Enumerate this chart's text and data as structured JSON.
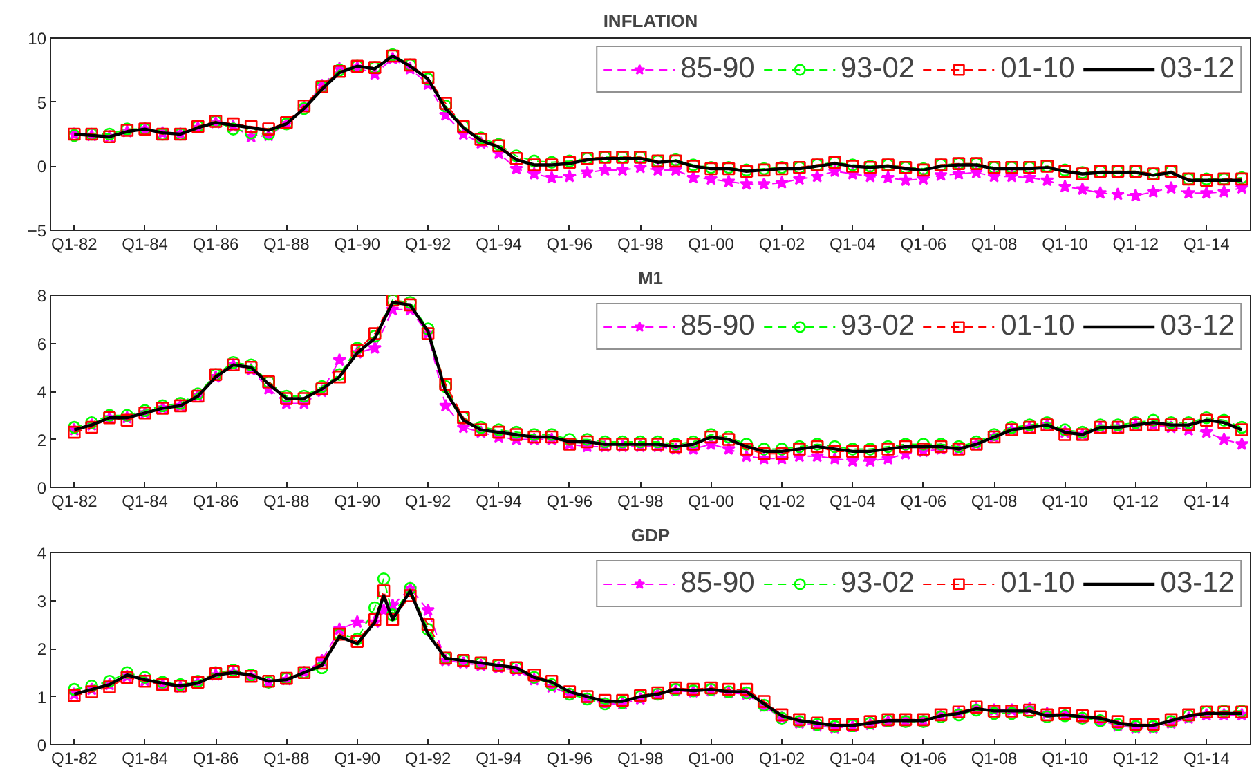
{
  "chart_data": [
    {
      "type": "line",
      "title": "INFLATION",
      "legend": "top right",
      "grid": false,
      "xlim": [
        "1981-05",
        "2015-04"
      ],
      "ylim": [
        -5,
        10
      ],
      "yticks": [
        -5,
        0,
        5,
        10
      ],
      "xticks": [
        {
          "value": "1982-01",
          "label": "Q1-82"
        },
        {
          "value": "1984-01",
          "label": "Q1-84"
        },
        {
          "value": "1986-01",
          "label": "Q1-86"
        },
        {
          "value": "1988-01",
          "label": "Q1-88"
        },
        {
          "value": "1990-01",
          "label": "Q1-90"
        },
        {
          "value": "1992-01",
          "label": "Q1-92"
        },
        {
          "value": "1994-01",
          "label": "Q1-94"
        },
        {
          "value": "1996-01",
          "label": "Q1-96"
        },
        {
          "value": "1998-01",
          "label": "Q1-98"
        },
        {
          "value": "2000-01",
          "label": "Q1-00"
        },
        {
          "value": "2002-01",
          "label": "Q1-02"
        },
        {
          "value": "2004-01",
          "label": "Q1-04"
        },
        {
          "value": "2006-01",
          "label": "Q1-06"
        },
        {
          "value": "2008-01",
          "label": "Q1-08"
        },
        {
          "value": "2010-01",
          "label": "Q1-10"
        },
        {
          "value": "2012-01",
          "label": "Q1-12"
        },
        {
          "value": "2014-01",
          "label": "Q1-14"
        }
      ],
      "x": [
        "1982-01",
        "1982-07",
        "1983-01",
        "1983-07",
        "1984-01",
        "1984-07",
        "1985-01",
        "1985-07",
        "1986-01",
        "1986-07",
        "1987-01",
        "1987-07",
        "1988-01",
        "1988-07",
        "1989-01",
        "1989-07",
        "1990-01",
        "1990-07",
        "1991-01",
        "1991-07",
        "1992-01",
        "1992-07",
        "1993-01",
        "1993-07",
        "1994-01",
        "1994-07",
        "1995-01",
        "1995-07",
        "1996-01",
        "1996-07",
        "1997-01",
        "1997-07",
        "1998-01",
        "1998-07",
        "1999-01",
        "1999-07",
        "2000-01",
        "2000-07",
        "2001-01",
        "2001-07",
        "2002-01",
        "2002-07",
        "2003-01",
        "2003-07",
        "2004-01",
        "2004-07",
        "2005-01",
        "2005-07",
        "2006-01",
        "2006-07",
        "2007-01",
        "2007-07",
        "2008-01",
        "2008-07",
        "2009-01",
        "2009-07",
        "2010-01",
        "2010-07",
        "2011-01",
        "2011-07",
        "2012-01",
        "2012-07",
        "2013-01",
        "2013-07",
        "2014-01",
        "2014-07",
        "2015-01"
      ],
      "series": [
        {
          "name": "85-90",
          "color": "#ff00ff",
          "marker": "star",
          "line_style": "dashed",
          "values": [
            2.5,
            2.4,
            2.3,
            2.7,
            2.9,
            2.6,
            2.5,
            3.0,
            3.4,
            3.1,
            2.3,
            2.4,
            3.3,
            4.6,
            6.3,
            7.6,
            7.7,
            7.2,
            8.4,
            7.6,
            6.4,
            4.0,
            2.5,
            1.8,
            1.0,
            -0.2,
            -0.6,
            -0.9,
            -0.8,
            -0.5,
            -0.3,
            -0.3,
            -0.1,
            -0.3,
            -0.3,
            -0.9,
            -1.0,
            -1.2,
            -1.4,
            -1.4,
            -1.3,
            -1.0,
            -0.8,
            -0.4,
            -0.6,
            -0.8,
            -0.9,
            -1.1,
            -1.0,
            -0.7,
            -0.6,
            -0.5,
            -0.8,
            -0.8,
            -0.9,
            -1.1,
            -1.6,
            -1.8,
            -2.1,
            -2.2,
            -2.3,
            -2.0,
            -1.7,
            -2.1,
            -2.1,
            -2.0,
            -1.7
          ]
        },
        {
          "name": "93-02",
          "color": "#00ff00",
          "marker": "circle",
          "line_style": "dashed",
          "values": [
            2.4,
            2.5,
            2.5,
            2.9,
            2.9,
            2.5,
            2.5,
            3.1,
            3.5,
            2.9,
            2.6,
            2.5,
            3.3,
            4.5,
            6.2,
            7.5,
            7.8,
            7.7,
            8.7,
            7.9,
            6.8,
            4.7,
            3.1,
            2.2,
            1.7,
            0.8,
            0.4,
            0.3,
            0.4,
            0.6,
            0.7,
            0.7,
            0.7,
            0.4,
            0.5,
            0.1,
            -0.1,
            -0.1,
            -0.3,
            -0.2,
            -0.1,
            -0.1,
            0.1,
            0.3,
            0.1,
            0.0,
            0.1,
            -0.1,
            -0.2,
            0.1,
            0.2,
            0.2,
            -0.1,
            -0.1,
            -0.1,
            0.0,
            -0.3,
            -0.5,
            -0.4,
            -0.4,
            -0.4,
            -0.6,
            -0.4,
            -1.0,
            -1.0,
            -1.0,
            -0.9
          ]
        },
        {
          "name": "01-10",
          "color": "#ff0000",
          "marker": "square",
          "line_style": "dashed",
          "values": [
            2.5,
            2.5,
            2.3,
            2.8,
            2.9,
            2.5,
            2.5,
            3.1,
            3.5,
            3.3,
            3.1,
            2.9,
            3.4,
            4.7,
            6.2,
            7.4,
            7.8,
            7.7,
            8.6,
            7.9,
            6.9,
            4.9,
            3.1,
            2.1,
            1.6,
            0.6,
            0.1,
            0.1,
            0.3,
            0.6,
            0.7,
            0.7,
            0.7,
            0.4,
            0.4,
            0.0,
            -0.2,
            -0.2,
            -0.4,
            -0.3,
            -0.2,
            -0.1,
            0.1,
            0.3,
            0.0,
            -0.1,
            0.1,
            -0.1,
            -0.3,
            0.1,
            0.2,
            0.2,
            -0.1,
            -0.1,
            -0.1,
            0.0,
            -0.4,
            -0.6,
            -0.4,
            -0.4,
            -0.4,
            -0.6,
            -0.4,
            -1.0,
            -1.1,
            -1.0,
            -1.0
          ]
        },
        {
          "name": "03-12",
          "color": "#000000",
          "marker": "none",
          "line_style": "solid",
          "values": [
            2.5,
            2.4,
            2.3,
            2.7,
            2.9,
            2.6,
            2.5,
            3.0,
            3.4,
            3.2,
            3.0,
            2.8,
            3.3,
            4.5,
            6.0,
            7.3,
            7.8,
            7.6,
            8.6,
            7.8,
            6.8,
            4.5,
            3.0,
            2.0,
            1.5,
            0.5,
            0.1,
            0.1,
            0.2,
            0.5,
            0.6,
            0.6,
            0.6,
            0.3,
            0.4,
            0.0,
            -0.2,
            -0.2,
            -0.4,
            -0.3,
            -0.2,
            -0.2,
            0.0,
            0.2,
            0.0,
            -0.1,
            0.0,
            -0.2,
            -0.3,
            0.0,
            0.1,
            0.1,
            -0.2,
            -0.2,
            -0.2,
            -0.1,
            -0.4,
            -0.6,
            -0.5,
            -0.5,
            -0.5,
            -0.7,
            -0.5,
            -1.1,
            -1.1,
            -1.1,
            -1.1
          ]
        }
      ]
    },
    {
      "type": "line",
      "title": "M1",
      "legend": "top right",
      "grid": false,
      "xlim": [
        "1981-05",
        "2015-04"
      ],
      "ylim": [
        0,
        8
      ],
      "yticks": [
        0,
        2,
        4,
        6,
        8
      ],
      "xticks": [
        {
          "value": "1982-01",
          "label": "Q1-82"
        },
        {
          "value": "1984-01",
          "label": "Q1-84"
        },
        {
          "value": "1986-01",
          "label": "Q1-86"
        },
        {
          "value": "1988-01",
          "label": "Q1-88"
        },
        {
          "value": "1990-01",
          "label": "Q1-90"
        },
        {
          "value": "1992-01",
          "label": "Q1-92"
        },
        {
          "value": "1994-01",
          "label": "Q1-94"
        },
        {
          "value": "1996-01",
          "label": "Q1-96"
        },
        {
          "value": "1998-01",
          "label": "Q1-98"
        },
        {
          "value": "2000-01",
          "label": "Q1-00"
        },
        {
          "value": "2002-01",
          "label": "Q1-02"
        },
        {
          "value": "2004-01",
          "label": "Q1-04"
        },
        {
          "value": "2006-01",
          "label": "Q1-06"
        },
        {
          "value": "2008-01",
          "label": "Q1-08"
        },
        {
          "value": "2010-01",
          "label": "Q1-10"
        },
        {
          "value": "2012-01",
          "label": "Q1-12"
        },
        {
          "value": "2014-01",
          "label": "Q1-14"
        }
      ],
      "x": [
        "1982-01",
        "1982-07",
        "1983-01",
        "1983-07",
        "1984-01",
        "1984-07",
        "1985-01",
        "1985-07",
        "1986-01",
        "1986-07",
        "1987-01",
        "1987-07",
        "1988-01",
        "1988-07",
        "1989-01",
        "1989-07",
        "1990-01",
        "1990-07",
        "1991-01",
        "1991-07",
        "1992-01",
        "1992-07",
        "1993-01",
        "1993-07",
        "1994-01",
        "1994-07",
        "1995-01",
        "1995-07",
        "1996-01",
        "1996-07",
        "1997-01",
        "1997-07",
        "1998-01",
        "1998-07",
        "1999-01",
        "1999-07",
        "2000-01",
        "2000-07",
        "2001-01",
        "2001-07",
        "2002-01",
        "2002-07",
        "2003-01",
        "2003-07",
        "2004-01",
        "2004-07",
        "2005-01",
        "2005-07",
        "2006-01",
        "2006-07",
        "2007-01",
        "2007-07",
        "2008-01",
        "2008-07",
        "2009-01",
        "2009-07",
        "2010-01",
        "2010-07",
        "2011-01",
        "2011-07",
        "2012-01",
        "2012-07",
        "2013-01",
        "2013-07",
        "2014-01",
        "2014-07",
        "2015-01"
      ],
      "series": [
        {
          "name": "85-90",
          "color": "#ff00ff",
          "marker": "star",
          "line_style": "dashed",
          "values": [
            2.4,
            2.6,
            2.9,
            2.9,
            3.1,
            3.3,
            3.4,
            3.8,
            4.6,
            5.1,
            4.9,
            4.1,
            3.5,
            3.5,
            4.0,
            5.3,
            5.6,
            5.8,
            7.4,
            7.4,
            6.4,
            3.4,
            2.5,
            2.3,
            2.1,
            2.0,
            2.0,
            2.0,
            1.8,
            1.7,
            1.7,
            1.7,
            1.7,
            1.7,
            1.6,
            1.6,
            1.8,
            1.6,
            1.3,
            1.2,
            1.2,
            1.3,
            1.3,
            1.2,
            1.1,
            1.1,
            1.2,
            1.4,
            1.5,
            1.6,
            1.6,
            1.8,
            2.1,
            2.4,
            2.5,
            2.6,
            2.3,
            2.2,
            2.5,
            2.5,
            2.6,
            2.6,
            2.5,
            2.4,
            2.3,
            2.0,
            1.8
          ]
        },
        {
          "name": "93-02",
          "color": "#00ff00",
          "marker": "circle",
          "line_style": "dashed",
          "values": [
            2.5,
            2.7,
            3.0,
            3.0,
            3.2,
            3.4,
            3.5,
            3.9,
            4.7,
            5.2,
            5.1,
            4.4,
            3.8,
            3.8,
            4.2,
            4.7,
            5.8,
            6.3,
            7.8,
            7.7,
            6.6,
            4.2,
            2.9,
            2.5,
            2.4,
            2.3,
            2.2,
            2.2,
            2.0,
            2.0,
            1.9,
            1.9,
            1.9,
            1.9,
            1.8,
            1.9,
            2.2,
            2.1,
            1.8,
            1.6,
            1.6,
            1.7,
            1.8,
            1.7,
            1.6,
            1.6,
            1.7,
            1.8,
            1.8,
            1.8,
            1.7,
            1.9,
            2.2,
            2.5,
            2.6,
            2.7,
            2.4,
            2.3,
            2.6,
            2.6,
            2.7,
            2.8,
            2.7,
            2.7,
            2.9,
            2.8,
            2.5
          ]
        },
        {
          "name": "01-10",
          "color": "#ff0000",
          "marker": "square",
          "line_style": "dashed",
          "values": [
            2.3,
            2.5,
            2.9,
            2.8,
            3.1,
            3.3,
            3.4,
            3.8,
            4.7,
            5.1,
            5.0,
            4.4,
            3.7,
            3.7,
            4.1,
            4.6,
            5.7,
            6.4,
            7.8,
            7.6,
            6.4,
            4.3,
            2.9,
            2.4,
            2.3,
            2.2,
            2.1,
            2.1,
            1.8,
            1.9,
            1.8,
            1.8,
            1.8,
            1.8,
            1.7,
            1.8,
            2.1,
            2.0,
            1.6,
            1.4,
            1.4,
            1.6,
            1.7,
            1.5,
            1.5,
            1.5,
            1.6,
            1.7,
            1.6,
            1.7,
            1.6,
            1.8,
            2.1,
            2.4,
            2.5,
            2.6,
            2.2,
            2.2,
            2.5,
            2.5,
            2.6,
            2.6,
            2.6,
            2.6,
            2.8,
            2.7,
            2.4
          ]
        },
        {
          "name": "03-12",
          "color": "#000000",
          "marker": "none",
          "line_style": "solid",
          "values": [
            2.4,
            2.6,
            2.9,
            2.9,
            3.1,
            3.3,
            3.4,
            3.8,
            4.6,
            5.1,
            5.0,
            4.3,
            3.7,
            3.7,
            4.1,
            4.6,
            5.6,
            6.2,
            7.7,
            7.6,
            6.5,
            4.0,
            2.8,
            2.4,
            2.3,
            2.2,
            2.1,
            2.1,
            1.9,
            1.9,
            1.8,
            1.8,
            1.8,
            1.8,
            1.7,
            1.8,
            2.1,
            2.0,
            1.7,
            1.5,
            1.5,
            1.6,
            1.7,
            1.6,
            1.5,
            1.5,
            1.6,
            1.7,
            1.7,
            1.7,
            1.6,
            1.8,
            2.1,
            2.4,
            2.5,
            2.6,
            2.3,
            2.2,
            2.5,
            2.5,
            2.6,
            2.7,
            2.6,
            2.6,
            2.8,
            2.7,
            2.4
          ]
        }
      ]
    },
    {
      "type": "line",
      "title": "GDP",
      "legend": "top right",
      "grid": false,
      "xlim": [
        "1981-05",
        "2015-04"
      ],
      "ylim": [
        0,
        4
      ],
      "yticks": [
        0,
        1,
        2,
        3,
        4
      ],
      "xticks": [
        {
          "value": "1982-01",
          "label": "Q1-82"
        },
        {
          "value": "1984-01",
          "label": "Q1-84"
        },
        {
          "value": "1986-01",
          "label": "Q1-86"
        },
        {
          "value": "1988-01",
          "label": "Q1-88"
        },
        {
          "value": "1990-01",
          "label": "Q1-90"
        },
        {
          "value": "1992-01",
          "label": "Q1-92"
        },
        {
          "value": "1994-01",
          "label": "Q1-94"
        },
        {
          "value": "1996-01",
          "label": "Q1-96"
        },
        {
          "value": "1998-01",
          "label": "Q1-98"
        },
        {
          "value": "2000-01",
          "label": "Q1-00"
        },
        {
          "value": "2002-01",
          "label": "Q1-02"
        },
        {
          "value": "2004-01",
          "label": "Q1-04"
        },
        {
          "value": "2006-01",
          "label": "Q1-06"
        },
        {
          "value": "2008-01",
          "label": "Q1-08"
        },
        {
          "value": "2010-01",
          "label": "Q1-10"
        },
        {
          "value": "2012-01",
          "label": "Q1-12"
        },
        {
          "value": "2014-01",
          "label": "Q1-14"
        }
      ],
      "x": [
        "1982-01",
        "1982-07",
        "1983-01",
        "1983-07",
        "1984-01",
        "1984-07",
        "1985-01",
        "1985-07",
        "1986-01",
        "1986-07",
        "1987-01",
        "1987-07",
        "1988-01",
        "1988-07",
        "1989-01",
        "1989-07",
        "1990-01",
        "1990-07",
        "1990-10",
        "1991-01",
        "1991-07",
        "1992-01",
        "1992-07",
        "1993-01",
        "1993-07",
        "1994-01",
        "1994-07",
        "1995-01",
        "1995-07",
        "1996-01",
        "1996-07",
        "1997-01",
        "1997-07",
        "1998-01",
        "1998-07",
        "1999-01",
        "1999-07",
        "2000-01",
        "2000-07",
        "2001-01",
        "2001-07",
        "2002-01",
        "2002-07",
        "2003-01",
        "2003-07",
        "2004-01",
        "2004-07",
        "2005-01",
        "2005-07",
        "2006-01",
        "2006-07",
        "2007-01",
        "2007-07",
        "2008-01",
        "2008-07",
        "2009-01",
        "2009-07",
        "2010-01",
        "2010-07",
        "2011-01",
        "2011-07",
        "2012-01",
        "2012-07",
        "2013-01",
        "2013-07",
        "2014-01",
        "2014-07",
        "2015-01"
      ],
      "series": [
        {
          "name": "85-90",
          "color": "#ff00ff",
          "marker": "star",
          "line_style": "dashed",
          "values": [
            1.05,
            1.15,
            1.25,
            1.42,
            1.33,
            1.25,
            1.2,
            1.28,
            1.45,
            1.5,
            1.42,
            1.3,
            1.35,
            1.5,
            1.75,
            2.4,
            2.55,
            2.55,
            2.8,
            2.9,
            3.25,
            2.8,
            1.75,
            1.7,
            1.65,
            1.6,
            1.55,
            1.35,
            1.2,
            1.05,
            0.95,
            0.85,
            0.85,
            0.95,
            1.05,
            1.12,
            1.1,
            1.12,
            1.08,
            1.05,
            0.8,
            0.55,
            0.45,
            0.4,
            0.35,
            0.38,
            0.42,
            0.48,
            0.5,
            0.5,
            0.6,
            0.65,
            0.75,
            0.72,
            0.72,
            0.75,
            0.65,
            0.62,
            0.55,
            0.5,
            0.4,
            0.35,
            0.35,
            0.45,
            0.55,
            0.62,
            0.62,
            0.62
          ]
        },
        {
          "name": "93-02",
          "color": "#00ff00",
          "marker": "circle",
          "line_style": "dashed",
          "values": [
            1.15,
            1.22,
            1.32,
            1.5,
            1.4,
            1.3,
            1.25,
            1.32,
            1.5,
            1.55,
            1.45,
            1.3,
            1.38,
            1.5,
            1.6,
            2.3,
            2.2,
            2.85,
            3.45,
            2.7,
            3.25,
            2.4,
            1.8,
            1.75,
            1.7,
            1.65,
            1.6,
            1.4,
            1.25,
            1.05,
            0.95,
            0.85,
            0.88,
            1.0,
            1.05,
            1.15,
            1.12,
            1.15,
            1.1,
            1.08,
            0.82,
            0.55,
            0.48,
            0.42,
            0.38,
            0.4,
            0.45,
            0.5,
            0.48,
            0.48,
            0.58,
            0.62,
            0.72,
            0.65,
            0.65,
            0.68,
            0.58,
            0.6,
            0.55,
            0.5,
            0.42,
            0.38,
            0.38,
            0.48,
            0.6,
            0.68,
            0.7,
            0.7
          ]
        },
        {
          "name": "01-10",
          "color": "#ff0000",
          "marker": "square",
          "line_style": "dashed",
          "values": [
            1.02,
            1.1,
            1.2,
            1.4,
            1.32,
            1.25,
            1.22,
            1.3,
            1.48,
            1.52,
            1.42,
            1.32,
            1.38,
            1.5,
            1.7,
            2.3,
            2.15,
            2.6,
            3.2,
            2.6,
            3.1,
            2.5,
            1.8,
            1.75,
            1.7,
            1.65,
            1.6,
            1.45,
            1.32,
            1.1,
            1.0,
            0.92,
            0.92,
            1.02,
            1.08,
            1.18,
            1.15,
            1.18,
            1.15,
            1.15,
            0.9,
            0.62,
            0.52,
            0.45,
            0.42,
            0.42,
            0.48,
            0.52,
            0.52,
            0.52,
            0.62,
            0.68,
            0.78,
            0.7,
            0.7,
            0.72,
            0.62,
            0.65,
            0.6,
            0.58,
            0.48,
            0.42,
            0.42,
            0.52,
            0.62,
            0.68,
            0.68,
            0.68
          ]
        },
        {
          "name": "03-12",
          "color": "#000000",
          "marker": "none",
          "line_style": "solid",
          "values": [
            1.05,
            1.15,
            1.25,
            1.45,
            1.35,
            1.28,
            1.22,
            1.28,
            1.45,
            1.5,
            1.45,
            1.32,
            1.35,
            1.5,
            1.65,
            2.25,
            2.1,
            2.55,
            3.1,
            2.6,
            3.2,
            2.3,
            1.8,
            1.75,
            1.7,
            1.65,
            1.6,
            1.4,
            1.3,
            1.1,
            1.0,
            0.9,
            0.9,
            1.0,
            1.05,
            1.15,
            1.12,
            1.15,
            1.1,
            1.1,
            0.85,
            0.6,
            0.5,
            0.45,
            0.4,
            0.4,
            0.45,
            0.5,
            0.5,
            0.5,
            0.6,
            0.65,
            0.75,
            0.7,
            0.7,
            0.7,
            0.6,
            0.62,
            0.58,
            0.55,
            0.45,
            0.4,
            0.4,
            0.5,
            0.6,
            0.65,
            0.65,
            0.65
          ]
        }
      ]
    }
  ]
}
